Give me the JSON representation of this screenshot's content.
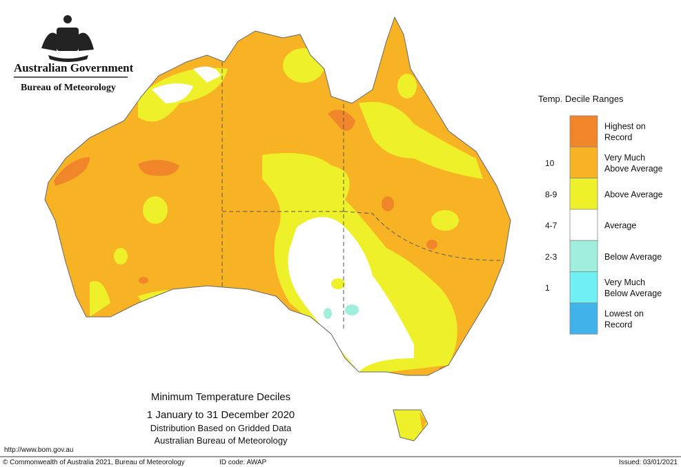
{
  "header": {
    "government": "Australian Government",
    "agency": "Bureau of Meteorology"
  },
  "legend": {
    "title": "Temp. Decile Ranges",
    "items": [
      {
        "label": "Highest on Record",
        "color": "#f0852a"
      },
      {
        "decile": "10",
        "label": "Very Much Above Average",
        "color": "#f7b324"
      },
      {
        "decile": "8-9",
        "label": "Above Average",
        "color": "#eef02a"
      },
      {
        "decile": "4-7",
        "label": "Average",
        "color": "#ffffff"
      },
      {
        "decile": "2-3",
        "label": "Below Average",
        "color": "#9fefdc"
      },
      {
        "decile": "1",
        "label": "Very Much Below Average",
        "color": "#6ef0f4"
      },
      {
        "label": "Lowest on Record",
        "color": "#40b4ea"
      }
    ]
  },
  "map_title": {
    "lines": [
      "Minimum Temperature Deciles",
      "1 January to 31 December 2020",
      "Distribution Based on Gridded Data",
      "Australian Bureau of Meteorology"
    ]
  },
  "footer": {
    "url": "http://www.bom.gov.au",
    "copyright": "© Commonwealth of Australia 2021, Bureau of Meteorology",
    "id_code": "ID code: AWAP",
    "issued": "Issued: 03/01/2021"
  }
}
